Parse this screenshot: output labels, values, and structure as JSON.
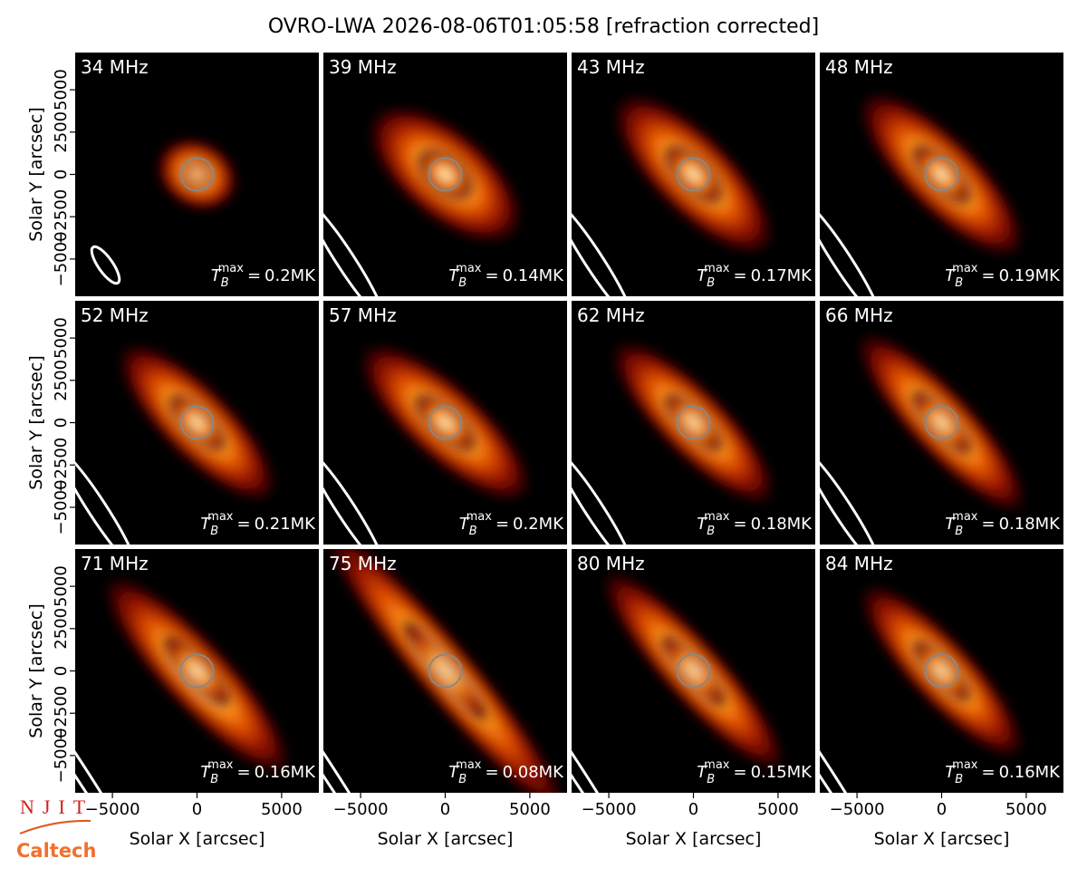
{
  "title": "OVRO-LWA 2026-08-06T01:05:58 [refraction corrected]",
  "tb_symbol": {
    "base": "T",
    "sub": "B",
    "sup": "max",
    "eq": "="
  },
  "logos": {
    "njit": "NJIT",
    "caltech": "Caltech"
  },
  "chart_data": [
    {
      "type": "image",
      "title": "34 MHz",
      "tb_max": "0.2MK",
      "xlim": [
        -7200,
        7200
      ],
      "ylim": [
        -7200,
        7200
      ],
      "yticks": [
        {
          "value": -5000,
          "label": "−5000"
        },
        {
          "value": -2500,
          "label": "−2500"
        },
        0,
        2500,
        5000
      ],
      "ylabel": "Solar Y [arcsec]"
    },
    {
      "type": "image",
      "title": "39 MHz",
      "tb_max": "0.14MK",
      "xlim": [
        -7200,
        7200
      ],
      "ylim": [
        -7200,
        7200
      ]
    },
    {
      "type": "image",
      "title": "43 MHz",
      "tb_max": "0.17MK",
      "xlim": [
        -7200,
        7200
      ],
      "ylim": [
        -7200,
        7200
      ]
    },
    {
      "type": "image",
      "title": "48 MHz",
      "tb_max": "0.19MK",
      "xlim": [
        -7200,
        7200
      ],
      "ylim": [
        -7200,
        7200
      ]
    },
    {
      "type": "image",
      "title": "52 MHz",
      "tb_max": "0.21MK",
      "xlim": [
        -7200,
        7200
      ],
      "ylim": [
        -7200,
        7200
      ],
      "yticks": [
        {
          "value": -5000,
          "label": "−5000"
        },
        {
          "value": -2500,
          "label": "−2500"
        },
        0,
        2500,
        5000
      ],
      "ylabel": "Solar Y [arcsec]"
    },
    {
      "type": "image",
      "title": "57 MHz",
      "tb_max": "0.2MK",
      "xlim": [
        -7200,
        7200
      ],
      "ylim": [
        -7200,
        7200
      ]
    },
    {
      "type": "image",
      "title": "62 MHz",
      "tb_max": "0.18MK",
      "xlim": [
        -7200,
        7200
      ],
      "ylim": [
        -7200,
        7200
      ]
    },
    {
      "type": "image",
      "title": "66 MHz",
      "tb_max": "0.18MK",
      "xlim": [
        -7200,
        7200
      ],
      "ylim": [
        -7200,
        7200
      ]
    },
    {
      "type": "image",
      "title": "71 MHz",
      "tb_max": "0.16MK",
      "xlim": [
        -7200,
        7200
      ],
      "ylim": [
        -7200,
        7200
      ],
      "yticks": [
        {
          "value": -5000,
          "label": "−5000"
        },
        {
          "value": -2500,
          "label": "−2500"
        },
        0,
        2500,
        5000
      ],
      "ylabel": "Solar Y [arcsec]",
      "xticks": [
        {
          "value": -5000,
          "label": "−5000"
        },
        0,
        5000
      ],
      "xlabel": "Solar X [arcsec]"
    },
    {
      "type": "image",
      "title": "75 MHz",
      "tb_max": "0.08MK",
      "xlim": [
        -7200,
        7200
      ],
      "ylim": [
        -7200,
        7200
      ],
      "xticks": [
        {
          "value": -5000,
          "label": "−5000"
        },
        0,
        5000
      ],
      "xlabel": "Solar X [arcsec]"
    },
    {
      "type": "image",
      "title": "80 MHz",
      "tb_max": "0.15MK",
      "xlim": [
        -7200,
        7200
      ],
      "ylim": [
        -7200,
        7200
      ],
      "xticks": [
        {
          "value": -5000,
          "label": "−5000"
        },
        0,
        5000
      ],
      "xlabel": "Solar X [arcsec]"
    },
    {
      "type": "image",
      "title": "84 MHz",
      "tb_max": "0.16MK",
      "xlim": [
        -7200,
        7200
      ],
      "ylim": [
        -7200,
        7200
      ],
      "xticks": [
        {
          "value": -5000,
          "label": "−5000"
        },
        0,
        5000
      ],
      "xlabel": "Solar X [arcsec]"
    }
  ]
}
